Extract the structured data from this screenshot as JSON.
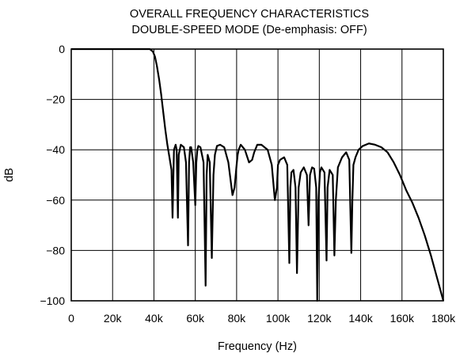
{
  "chart_data": {
    "type": "line",
    "title": [
      "OVERALL FREQUENCY CHARACTERISTICS",
      "DOUBLE-SPEED MODE (De-emphasis: OFF)"
    ],
    "xlabel": "Frequency (Hz)",
    "ylabel": "dB",
    "xlim": [
      0,
      180000
    ],
    "ylim": [
      -100,
      0
    ],
    "grid": true,
    "x_ticks": [
      0,
      20000,
      40000,
      60000,
      80000,
      100000,
      120000,
      140000,
      160000,
      180000
    ],
    "x_tick_labels": [
      "0",
      "20k",
      "40k",
      "60k",
      "80k",
      "100k",
      "120k",
      "140k",
      "160k",
      "180k"
    ],
    "y_ticks": [
      0,
      -20,
      -40,
      -60,
      -80,
      -100
    ],
    "y_tick_labels": [
      "0",
      "−20",
      "−40",
      "−60",
      "−80",
      "−100"
    ],
    "series": [
      {
        "x": [
          0,
          38000,
          39500,
          40500,
          41500,
          42500,
          43500,
          44500,
          45500,
          46500,
          47500,
          48500,
          49000,
          49300,
          49700,
          50500,
          51000,
          51600,
          52000,
          53000,
          54500,
          55500,
          56500,
          57000,
          57500,
          58000,
          59000,
          60000,
          60500,
          61000,
          61500,
          62500,
          64000,
          65000,
          65500,
          66000,
          67000,
          68000,
          68800,
          69500,
          70500,
          72000,
          74000,
          76000,
          78000,
          79000,
          80000,
          80500,
          81000,
          82000,
          84000,
          86000,
          87500,
          88500,
          90000,
          92000,
          95000,
          97000,
          98500,
          99500,
          100000,
          101000,
          103000,
          104500,
          105500,
          106000,
          106500,
          107500,
          108500,
          109200,
          110000,
          111000,
          112500,
          114000,
          114800,
          115500,
          116500,
          117500,
          118500,
          119000,
          119600,
          120300,
          121000,
          122500,
          123500,
          124000,
          125000,
          126500,
          127300,
          128000,
          129000,
          131000,
          133000,
          134500,
          135500,
          136000,
          136500,
          137500,
          139000,
          141000,
          144000,
          147000,
          150000,
          153000,
          156000,
          159000,
          162000,
          165000,
          168000,
          171000,
          174000,
          177000,
          180000
        ],
        "y": [
          0,
          0,
          -1,
          -3,
          -7,
          -12,
          -18,
          -25,
          -32,
          -38,
          -43,
          -48,
          -67,
          -55,
          -40,
          -38,
          -40,
          -67,
          -42,
          -38,
          -39,
          -45,
          -78,
          -45,
          -39,
          -39,
          -45,
          -62,
          -45,
          -40,
          -38.5,
          -39,
          -45,
          -94,
          -50,
          -42,
          -45,
          -83,
          -50,
          -42,
          -38.5,
          -38,
          -39,
          -45,
          -58,
          -55,
          -46,
          -42,
          -40,
          -38,
          -40,
          -45,
          -44,
          -41,
          -38,
          -38,
          -40,
          -46,
          -60,
          -55,
          -46,
          -44,
          -43,
          -46,
          -85,
          -55,
          -49,
          -48,
          -55,
          -89,
          -55,
          -49,
          -47,
          -50,
          -70,
          -50,
          -47,
          -47.5,
          -55,
          -100,
          -60,
          -49,
          -47,
          -49,
          -84,
          -55,
          -48,
          -50,
          -82,
          -60,
          -47,
          -43,
          -41,
          -44,
          -81,
          -60,
          -46,
          -43,
          -40,
          -38.5,
          -37.5,
          -38,
          -39,
          -41,
          -45,
          -50,
          -56,
          -61,
          -67,
          -74,
          -82,
          -91,
          -100
        ]
      }
    ]
  }
}
